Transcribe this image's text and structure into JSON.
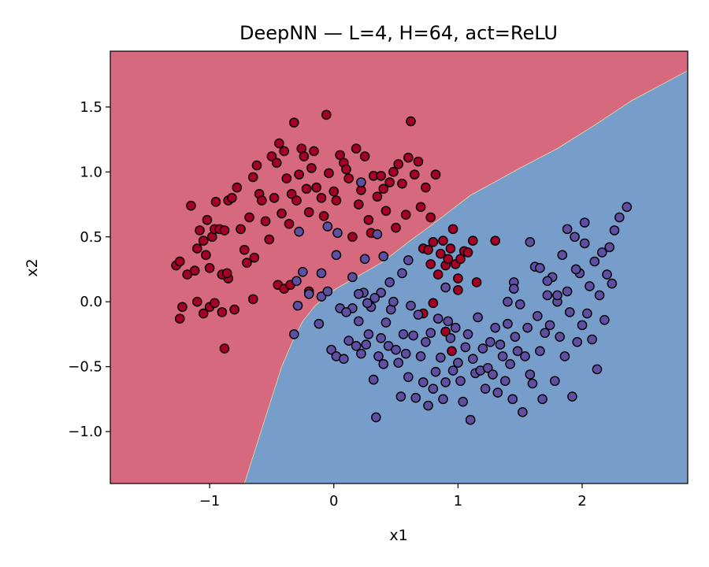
{
  "chart_data": {
    "type": "scatter",
    "title": "DeepNN — L=4, H=64, act=ReLU",
    "xlabel": "x1",
    "ylabel": "x2",
    "xlim": [
      -1.8,
      2.85
    ],
    "ylim": [
      -1.4,
      1.93
    ],
    "xticks": [
      {
        "value": -1,
        "label": "−1"
      },
      {
        "value": 0,
        "label": "0"
      },
      {
        "value": 1,
        "label": "1"
      },
      {
        "value": 2,
        "label": "2"
      }
    ],
    "yticks": [
      {
        "value": 1.5,
        "label": "1.5"
      },
      {
        "value": 1.0,
        "label": "1.0"
      },
      {
        "value": 0.5,
        "label": "0.5"
      },
      {
        "value": 0.0,
        "label": "0.0"
      },
      {
        "value": -0.5,
        "label": "−0.5"
      },
      {
        "value": -1.0,
        "label": "−1.0"
      }
    ],
    "grid": false,
    "colors": {
      "region_class0": "#d6697d",
      "region_class1": "#779dca",
      "point_class0": "#a50026",
      "point_class1": "#5e4fa2",
      "point_edge": "#000000"
    },
    "decision_boundary": [
      [
        -0.72,
        -1.4
      ],
      [
        -0.62,
        -1.1
      ],
      [
        -0.52,
        -0.8
      ],
      [
        -0.42,
        -0.5
      ],
      [
        -0.33,
        -0.3
      ],
      [
        -0.25,
        -0.15
      ],
      [
        -0.15,
        -0.03
      ],
      [
        0.0,
        0.09
      ],
      [
        0.2,
        0.2
      ],
      [
        0.4,
        0.31
      ],
      [
        0.6,
        0.46
      ],
      [
        0.8,
        0.6
      ],
      [
        1.1,
        0.82
      ],
      [
        1.5,
        1.03
      ],
      [
        1.8,
        1.18
      ],
      [
        2.1,
        1.36
      ],
      [
        2.4,
        1.55
      ],
      [
        2.85,
        1.78
      ]
    ],
    "series": [
      {
        "class": 0,
        "points": [
          [
            -1.27,
            0.28
          ],
          [
            -1.24,
            0.31
          ],
          [
            -1.18,
            0.21
          ],
          [
            -1.15,
            0.74
          ],
          [
            -1.12,
            0.24
          ],
          [
            -1.1,
            0.41
          ],
          [
            -1.08,
            0.55
          ],
          [
            -1.05,
            0.47
          ],
          [
            -1.02,
            0.63
          ],
          [
            -0.98,
            0.5
          ],
          [
            -0.96,
            0.56
          ],
          [
            -0.92,
            0.56
          ],
          [
            -0.88,
            0.55
          ],
          [
            -0.85,
            0.78
          ],
          [
            -0.82,
            0.8
          ],
          [
            -0.78,
            0.88
          ],
          [
            -0.75,
            0.56
          ],
          [
            -0.72,
            0.4
          ],
          [
            -0.7,
            0.3
          ],
          [
            -0.68,
            0.65
          ],
          [
            -0.65,
            0.96
          ],
          [
            -0.62,
            1.05
          ],
          [
            -0.6,
            0.83
          ],
          [
            -0.58,
            0.78
          ],
          [
            -0.55,
            0.62
          ],
          [
            -0.52,
            0.48
          ],
          [
            -0.5,
            1.12
          ],
          [
            -0.48,
            0.8
          ],
          [
            -0.46,
            1.07
          ],
          [
            -0.44,
            1.22
          ],
          [
            -0.42,
            0.68
          ],
          [
            -0.4,
            1.16
          ],
          [
            -0.38,
            0.95
          ],
          [
            -0.36,
            0.6
          ],
          [
            -0.34,
            0.83
          ],
          [
            -0.32,
            1.38
          ],
          [
            -0.3,
            0.78
          ],
          [
            -0.28,
            0.98
          ],
          [
            -0.26,
            1.18
          ],
          [
            -0.24,
            1.12
          ],
          [
            -0.22,
            0.87
          ],
          [
            -0.2,
            0.69
          ],
          [
            -0.18,
            1.03
          ],
          [
            -0.16,
            1.16
          ],
          [
            -0.14,
            0.88
          ],
          [
            -0.1,
            0.8
          ],
          [
            -0.08,
            0.66
          ],
          [
            -0.06,
            1.44
          ],
          [
            -0.04,
            0.99
          ],
          [
            0.0,
            0.85
          ],
          [
            0.02,
            0.78
          ],
          [
            0.05,
            1.13
          ],
          [
            0.08,
            1.07
          ],
          [
            0.1,
            1.02
          ],
          [
            0.12,
            0.95
          ],
          [
            0.15,
            0.5
          ],
          [
            0.18,
            1.18
          ],
          [
            0.2,
            0.75
          ],
          [
            0.22,
            0.86
          ],
          [
            0.25,
            1.12
          ],
          [
            0.28,
            0.63
          ],
          [
            0.3,
            0.53
          ],
          [
            0.32,
            0.97
          ],
          [
            0.35,
            0.81
          ],
          [
            0.38,
            0.97
          ],
          [
            0.4,
            0.87
          ],
          [
            0.42,
            0.7
          ],
          [
            0.45,
            0.92
          ],
          [
            0.48,
            1.0
          ],
          [
            0.5,
            0.57
          ],
          [
            0.52,
            1.06
          ],
          [
            0.55,
            0.91
          ],
          [
            0.58,
            0.67
          ],
          [
            0.6,
            1.11
          ],
          [
            0.62,
            1.39
          ],
          [
            0.65,
            0.98
          ],
          [
            0.68,
            1.08
          ],
          [
            0.7,
            0.73
          ],
          [
            0.72,
            0.41
          ],
          [
            0.74,
            0.88
          ],
          [
            0.76,
            0.4
          ],
          [
            0.78,
            0.65
          ],
          [
            0.8,
            0.46
          ],
          [
            0.82,
            0.98
          ],
          [
            0.84,
            0.21
          ],
          [
            0.86,
            0.37
          ],
          [
            0.88,
            0.47
          ],
          [
            0.9,
            0.28
          ],
          [
            0.92,
            0.33
          ],
          [
            0.94,
            0.41
          ],
          [
            0.96,
            0.56
          ],
          [
            0.98,
            0.29
          ],
          [
            1.0,
            0.18
          ],
          [
            1.02,
            0.33
          ],
          [
            1.05,
            0.39
          ],
          [
            1.08,
            0.38
          ],
          [
            1.12,
            0.47
          ],
          [
            1.15,
            0.15
          ],
          [
            1.3,
            0.47
          ],
          [
            -1.24,
            -0.13
          ],
          [
            -1.22,
            -0.04
          ],
          [
            -1.1,
            0.0
          ],
          [
            -1.05,
            -0.09
          ],
          [
            -1.0,
            -0.04
          ],
          [
            -0.96,
            -0.01
          ],
          [
            -0.9,
            -0.08
          ],
          [
            -0.88,
            -0.36
          ],
          [
            -0.85,
            0.18
          ],
          [
            -0.8,
            -0.06
          ],
          [
            -0.65,
            0.02
          ],
          [
            -0.45,
            0.13
          ],
          [
            -0.4,
            0.1
          ],
          [
            -0.35,
            0.13
          ],
          [
            -0.2,
            0.08
          ],
          [
            0.95,
            -0.38
          ],
          [
            0.9,
            -0.23
          ],
          [
            1.0,
            0.09
          ],
          [
            0.8,
            -0.01
          ],
          [
            0.72,
            -0.09
          ],
          [
            -0.9,
            0.21
          ],
          [
            -0.86,
            0.22
          ],
          [
            -1.0,
            0.26
          ],
          [
            -0.64,
            0.34
          ],
          [
            -0.95,
            0.77
          ],
          [
            -1.03,
            0.36
          ],
          [
            0.78,
            0.29
          ]
        ]
      },
      {
        "class": 1,
        "points": [
          [
            -0.32,
            -0.25
          ],
          [
            -0.29,
            -0.03
          ],
          [
            -0.2,
            0.06
          ],
          [
            -0.12,
            -0.17
          ],
          [
            -0.1,
            0.04
          ],
          [
            -0.05,
            0.08
          ],
          [
            -0.02,
            -0.37
          ],
          [
            0.02,
            -0.42
          ],
          [
            0.05,
            -0.05
          ],
          [
            0.08,
            -0.44
          ],
          [
            0.12,
            -0.3
          ],
          [
            0.15,
            -0.05
          ],
          [
            0.18,
            -0.34
          ],
          [
            0.2,
            -0.15
          ],
          [
            0.22,
            -0.4
          ],
          [
            0.24,
            0.07
          ],
          [
            0.26,
            -0.33
          ],
          [
            0.28,
            -0.25
          ],
          [
            0.3,
            -0.04
          ],
          [
            0.32,
            -0.6
          ],
          [
            0.34,
            -0.89
          ],
          [
            0.36,
            -0.42
          ],
          [
            0.38,
            -0.28
          ],
          [
            0.4,
            -0.48
          ],
          [
            0.42,
            -0.16
          ],
          [
            0.44,
            -0.34
          ],
          [
            0.46,
            -0.06
          ],
          [
            0.48,
            0.0
          ],
          [
            0.5,
            -0.37
          ],
          [
            0.52,
            -0.47
          ],
          [
            0.54,
            -0.73
          ],
          [
            0.56,
            -0.25
          ],
          [
            0.58,
            -0.4
          ],
          [
            0.6,
            -0.58
          ],
          [
            0.62,
            -0.03
          ],
          [
            0.64,
            -0.26
          ],
          [
            0.66,
            -0.74
          ],
          [
            0.68,
            -0.1
          ],
          [
            0.7,
            -0.42
          ],
          [
            0.72,
            -0.62
          ],
          [
            0.74,
            -0.31
          ],
          [
            0.76,
            -0.8
          ],
          [
            0.78,
            -0.24
          ],
          [
            0.8,
            -0.67
          ],
          [
            0.82,
            -0.54
          ],
          [
            0.84,
            -0.13
          ],
          [
            0.86,
            -0.43
          ],
          [
            0.88,
            -0.75
          ],
          [
            0.9,
            -0.62
          ],
          [
            0.92,
            -0.15
          ],
          [
            0.94,
            -0.28
          ],
          [
            0.96,
            -0.53
          ],
          [
            0.98,
            -0.2
          ],
          [
            1.0,
            -0.47
          ],
          [
            1.02,
            -0.61
          ],
          [
            1.04,
            -0.77
          ],
          [
            1.06,
            -0.35
          ],
          [
            1.08,
            -0.25
          ],
          [
            1.1,
            -0.91
          ],
          [
            1.12,
            -0.44
          ],
          [
            1.14,
            -0.55
          ],
          [
            1.16,
            -0.12
          ],
          [
            1.18,
            -0.53
          ],
          [
            1.2,
            -0.36
          ],
          [
            1.22,
            -0.67
          ],
          [
            1.24,
            -0.51
          ],
          [
            1.26,
            -0.31
          ],
          [
            1.28,
            -0.56
          ],
          [
            1.3,
            -0.2
          ],
          [
            1.32,
            -0.7
          ],
          [
            1.34,
            -0.33
          ],
          [
            1.36,
            -0.42
          ],
          [
            1.38,
            -0.61
          ],
          [
            1.4,
            -0.17
          ],
          [
            1.42,
            -0.48
          ],
          [
            1.44,
            -0.75
          ],
          [
            1.46,
            -0.27
          ],
          [
            1.48,
            -0.38
          ],
          [
            1.5,
            -0.02
          ],
          [
            1.52,
            -0.85
          ],
          [
            1.54,
            -0.42
          ],
          [
            1.56,
            -0.2
          ],
          [
            1.58,
            -0.56
          ],
          [
            1.6,
            -0.63
          ],
          [
            1.62,
            0.27
          ],
          [
            1.64,
            -0.11
          ],
          [
            1.66,
            -0.38
          ],
          [
            1.68,
            -0.75
          ],
          [
            1.7,
            -0.24
          ],
          [
            1.72,
            0.05
          ],
          [
            1.74,
            -0.18
          ],
          [
            1.76,
            0.19
          ],
          [
            1.78,
            -0.61
          ],
          [
            1.8,
            0.0
          ],
          [
            1.82,
            -0.27
          ],
          [
            1.84,
            0.36
          ],
          [
            1.86,
            -0.42
          ],
          [
            1.88,
            0.08
          ],
          [
            1.9,
            -0.08
          ],
          [
            1.92,
            -0.73
          ],
          [
            1.94,
            0.5
          ],
          [
            1.96,
            -0.31
          ],
          [
            1.98,
            0.22
          ],
          [
            2.0,
            -0.18
          ],
          [
            2.02,
            0.61
          ],
          [
            2.04,
            -0.09
          ],
          [
            2.06,
            0.12
          ],
          [
            2.08,
            -0.29
          ],
          [
            2.1,
            0.31
          ],
          [
            2.12,
            -0.52
          ],
          [
            2.14,
            0.05
          ],
          [
            2.16,
            0.38
          ],
          [
            2.18,
            -0.14
          ],
          [
            2.2,
            0.21
          ],
          [
            2.22,
            0.42
          ],
          [
            2.24,
            0.14
          ],
          [
            2.3,
            0.65
          ],
          [
            2.36,
            0.73
          ],
          [
            2.26,
            0.55
          ],
          [
            2.02,
            0.45
          ],
          [
            1.95,
            0.25
          ],
          [
            1.88,
            0.56
          ],
          [
            1.8,
            0.05
          ],
          [
            1.72,
            0.16
          ],
          [
            1.66,
            0.26
          ],
          [
            1.58,
            0.46
          ],
          [
            1.45,
            0.15
          ],
          [
            1.4,
            0.0
          ],
          [
            0.6,
            0.32
          ],
          [
            0.55,
            0.22
          ],
          [
            0.45,
            0.15
          ],
          [
            0.38,
            0.07
          ],
          [
            0.33,
            0.03
          ],
          [
            0.27,
            -0.01
          ],
          [
            0.2,
            0.06
          ],
          [
            0.15,
            0.19
          ],
          [
            0.1,
            -0.08
          ],
          [
            0.4,
            0.35
          ],
          [
            0.22,
            0.92
          ],
          [
            -0.28,
            0.54
          ],
          [
            -0.25,
            0.23
          ],
          [
            -0.1,
            0.22
          ],
          [
            0.03,
            0.53
          ],
          [
            0.02,
            0.36
          ],
          [
            -0.05,
            0.58
          ],
          [
            0.25,
            0.33
          ],
          [
            0.35,
            0.52
          ],
          [
            -0.3,
            0.16
          ],
          [
            0.9,
            0.11
          ],
          [
            1.45,
            0.1
          ]
        ]
      }
    ]
  }
}
